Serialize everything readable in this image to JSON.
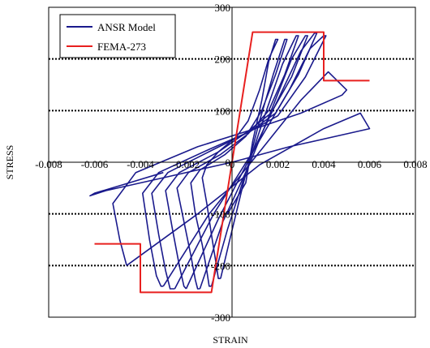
{
  "chart_data": {
    "type": "line",
    "title": "",
    "xlabel": "STRAIN",
    "ylabel": "STRESS",
    "xlim": [
      -0.008,
      0.008
    ],
    "ylim": [
      -300,
      300
    ],
    "x_ticks": [
      "-0.008",
      "-0.006",
      "-0.004",
      "-0.002",
      "0",
      "0.002",
      "0.004",
      "0.006",
      "0.008"
    ],
    "y_ticks": [
      "300",
      "200",
      "100",
      "0",
      "-100",
      "-200",
      "-300"
    ],
    "grid": "horizontal dotted at ±100, ±200",
    "legend_position": "top-left",
    "series": [
      {
        "name": "ANSR Model",
        "color": "#1a1a8c",
        "segments": [
          [
            [
              -0.0002,
              -100
            ],
            [
              0.0006,
              -40
            ],
            [
              0.0009,
              40
            ],
            [
              0.0013,
              120
            ],
            [
              0.0016,
              195
            ],
            [
              0.0019,
              238
            ],
            [
              0.002,
              238
            ],
            [
              0.0016,
              200
            ],
            [
              0.0012,
              140
            ],
            [
              0.0007,
              80
            ],
            [
              0.0002,
              50
            ],
            [
              -0.0006,
              20
            ],
            [
              -0.0011,
              -5
            ],
            [
              -0.0013,
              -30
            ],
            [
              -0.0011,
              -80
            ],
            [
              -0.0009,
              -140
            ],
            [
              -0.0007,
              -195
            ],
            [
              -0.0006,
              -225
            ],
            [
              -0.0005,
              -225
            ]
          ],
          [
            [
              -0.0005,
              -225
            ],
            [
              -0.0001,
              -150
            ],
            [
              0.0005,
              -40
            ],
            [
              0.0012,
              80
            ],
            [
              0.0018,
              170
            ],
            [
              0.0023,
              238
            ],
            [
              0.0024,
              238
            ],
            [
              0.0019,
              170
            ],
            [
              0.0013,
              100
            ],
            [
              0.0006,
              50
            ],
            [
              -0.0003,
              15
            ],
            [
              -0.0014,
              -15
            ],
            [
              -0.0018,
              -40
            ],
            [
              -0.0016,
              -100
            ],
            [
              -0.0013,
              -160
            ],
            [
              -0.0011,
              -210
            ],
            [
              -0.001,
              -240
            ],
            [
              -0.0009,
              -240
            ]
          ],
          [
            [
              -0.0009,
              -240
            ],
            [
              -0.0002,
              -130
            ],
            [
              0.0006,
              -20
            ],
            [
              0.0015,
              100
            ],
            [
              0.0022,
              190
            ],
            [
              0.0028,
              245
            ],
            [
              0.0029,
              245
            ],
            [
              0.0023,
              170
            ],
            [
              0.0016,
              100
            ],
            [
              0.0007,
              55
            ],
            [
              -0.0005,
              15
            ],
            [
              -0.0019,
              -20
            ],
            [
              -0.0024,
              -50
            ],
            [
              -0.0021,
              -115
            ],
            [
              -0.0018,
              -180
            ],
            [
              -0.0016,
              -228
            ],
            [
              -0.0015,
              -245
            ],
            [
              -0.0014,
              -245
            ]
          ],
          [
            [
              -0.0014,
              -245
            ],
            [
              -0.0004,
              -115
            ],
            [
              0.0008,
              0
            ],
            [
              0.0018,
              110
            ],
            [
              0.0026,
              200
            ],
            [
              0.0032,
              245
            ],
            [
              0.0033,
              245
            ],
            [
              0.0026,
              165
            ],
            [
              0.0017,
              95
            ],
            [
              0.0007,
              60
            ],
            [
              -0.0006,
              20
            ],
            [
              -0.0023,
              -20
            ],
            [
              -0.0029,
              -55
            ],
            [
              -0.0026,
              -130
            ],
            [
              -0.0023,
              -200
            ],
            [
              -0.0021,
              -240
            ],
            [
              -0.002,
              -245
            ]
          ],
          [
            [
              -0.002,
              -245
            ],
            [
              -0.0006,
              -110
            ],
            [
              0.0008,
              10
            ],
            [
              0.0021,
              130
            ],
            [
              0.003,
              215
            ],
            [
              0.0036,
              250
            ],
            [
              0.0037,
              250
            ],
            [
              0.0029,
              170
            ],
            [
              0.0019,
              95
            ],
            [
              0.0008,
              60
            ],
            [
              -0.0008,
              25
            ],
            [
              -0.0028,
              -20
            ],
            [
              -0.0035,
              -60
            ],
            [
              -0.0032,
              -140
            ],
            [
              -0.0029,
              -210
            ],
            [
              -0.0027,
              -245
            ],
            [
              -0.0025,
              -245
            ]
          ],
          [
            [
              -0.0025,
              -245
            ],
            [
              -0.0008,
              -100
            ],
            [
              0.0009,
              20
            ],
            [
              0.0025,
              140
            ],
            [
              0.0034,
              220
            ],
            [
              0.004,
              245
            ],
            [
              0.0041,
              245
            ],
            [
              0.0032,
              165
            ],
            [
              0.002,
              90
            ],
            [
              0.0008,
              60
            ],
            [
              -0.001,
              25
            ],
            [
              -0.0032,
              -20
            ],
            [
              -0.0039,
              -60
            ],
            [
              -0.0036,
              -150
            ],
            [
              -0.0033,
              -220
            ],
            [
              -0.0031,
              -240
            ],
            [
              -0.003,
              -240
            ]
          ],
          [
            [
              -0.003,
              -240
            ],
            [
              -0.001,
              -100
            ],
            [
              0.0012,
              20
            ],
            [
              0.003,
              120
            ],
            [
              0.0042,
              175
            ],
            [
              0.005,
              140
            ],
            [
              0.0048,
              130
            ],
            [
              0.003,
              95
            ],
            [
              0.001,
              65
            ],
            [
              -0.0015,
              30
            ],
            [
              -0.0042,
              -20
            ],
            [
              -0.0052,
              -80
            ],
            [
              -0.0049,
              -150
            ],
            [
              -0.0046,
              -200
            ]
          ],
          [
            [
              -0.0046,
              -200
            ],
            [
              -0.0015,
              -100
            ],
            [
              0.0012,
              -5
            ],
            [
              0.004,
              65
            ],
            [
              0.0056,
              95
            ],
            [
              0.006,
              65
            ],
            [
              0.005,
              55
            ],
            [
              0.0025,
              30
            ],
            [
              0.0,
              0
            ],
            [
              -0.003,
              -30
            ],
            [
              -0.0055,
              -55
            ],
            [
              -0.0062,
              -65
            ],
            [
              -0.006,
              -60
            ],
            [
              -0.0045,
              -40
            ],
            [
              -0.003,
              -20
            ]
          ]
        ]
      },
      {
        "name": "FEMA-273",
        "color": "#e8201f",
        "points": [
          [
            -0.006,
            -158
          ],
          [
            -0.004,
            -158
          ],
          [
            -0.004,
            -252
          ],
          [
            -0.0009,
            -252
          ],
          [
            0.0009,
            252
          ],
          [
            0.004,
            252
          ],
          [
            0.004,
            158
          ],
          [
            0.006,
            158
          ]
        ]
      }
    ]
  }
}
